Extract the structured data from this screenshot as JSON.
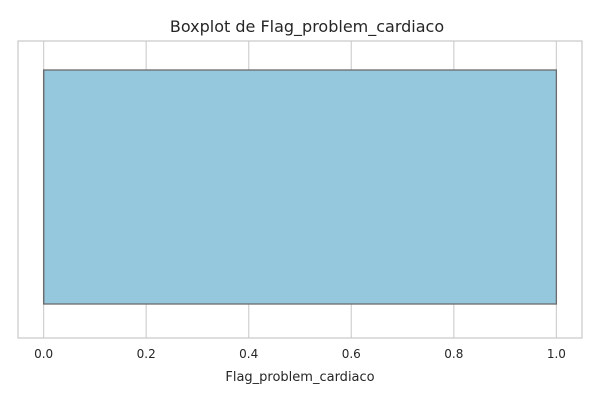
{
  "chart_data": {
    "type": "boxplot",
    "title": "Boxplot de Flag_problem_cardiaco",
    "xlabel": "Flag_problem_cardiaco",
    "ylabel": "",
    "orientation": "horizontal",
    "xlim": [
      -0.05,
      1.05
    ],
    "x_ticks": [
      0.0,
      0.2,
      0.4,
      0.6,
      0.8,
      1.0
    ],
    "x_tick_labels": [
      "0.0",
      "0.2",
      "0.4",
      "0.6",
      "0.8",
      "1.0"
    ],
    "box": {
      "min": 0.0,
      "q1": 0.0,
      "median": 0.0,
      "q3": 1.0,
      "max": 1.0
    },
    "grid": true,
    "colors": {
      "box_fill": "#95c8dd",
      "box_edge": "#6b6b6b",
      "grid": "#d0d0d0",
      "frame": "#c8c8c8"
    }
  }
}
